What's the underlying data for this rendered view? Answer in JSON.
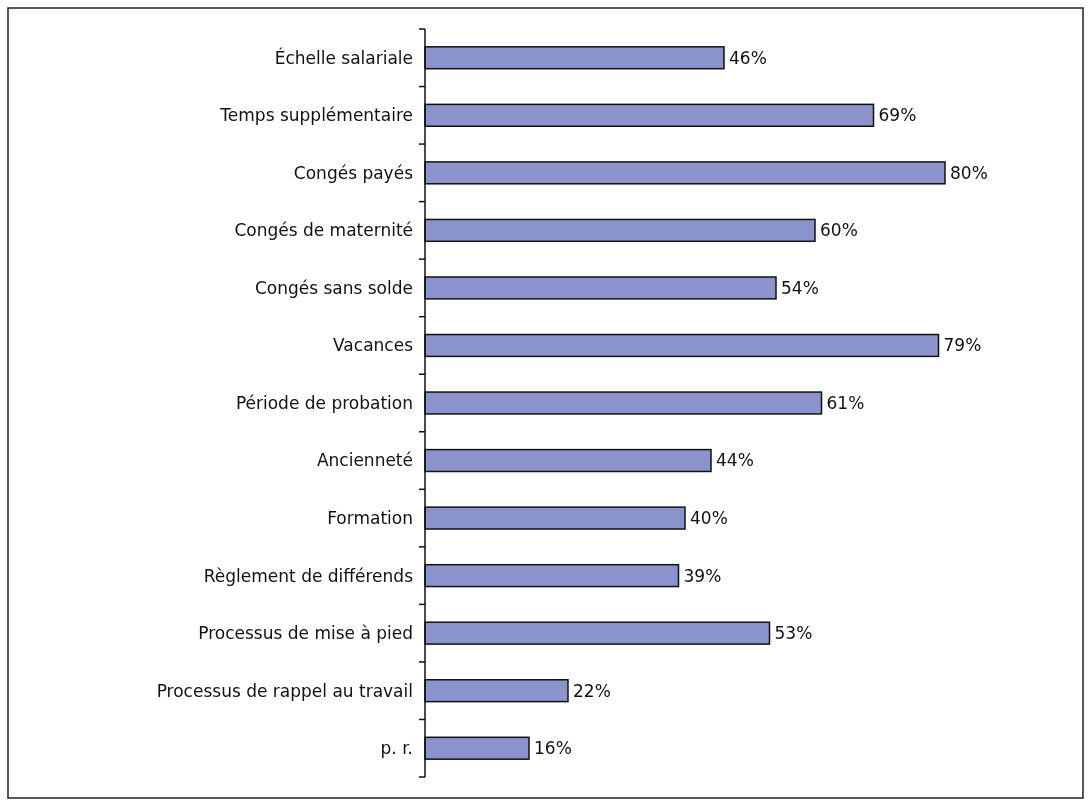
{
  "chart_data": {
    "type": "bar",
    "orientation": "horizontal",
    "categories": [
      "Échelle salariale",
      "Temps supplémentaire",
      "Congés payés",
      "Congés de maternité",
      "Congés sans solde",
      "Vacances",
      "Période de probation",
      "Ancienneté",
      "Formation",
      "Règlement de différends",
      "Processus de mise à pied",
      "Processus de rappel au travail",
      "p. r."
    ],
    "values": [
      46,
      69,
      80,
      60,
      54,
      79,
      61,
      44,
      40,
      39,
      53,
      22,
      16
    ],
    "value_labels": [
      "46%",
      "69%",
      "80%",
      "60%",
      "54%",
      "79%",
      "61%",
      "44%",
      "40%",
      "39%",
      "53%",
      "22%",
      "16%"
    ],
    "color": "#8b93cc",
    "tick_labels": "y"
  }
}
